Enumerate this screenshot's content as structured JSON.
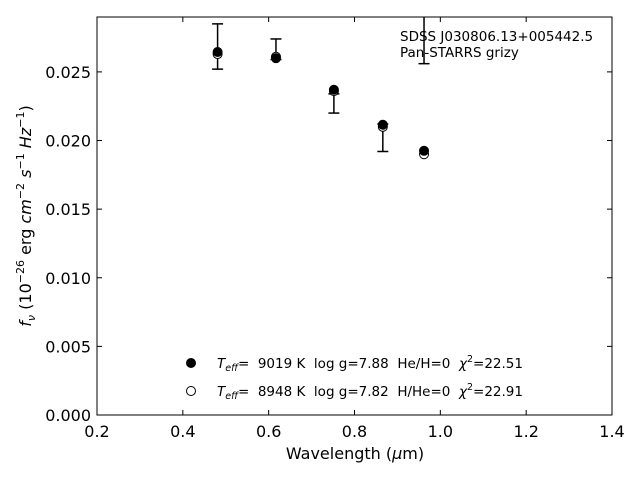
{
  "chart_data": {
    "type": "scatter",
    "title": "",
    "xlabel": "Wavelength (μm)",
    "ylabel": "f_ν (10^-26 erg cm^-2 s^-1 Hz^-1)",
    "xlim": [
      0.2,
      1.4
    ],
    "ylim": [
      0.0,
      0.029
    ],
    "x_ticks": [
      0.2,
      0.4,
      0.6,
      0.8,
      1.0,
      1.2,
      1.4
    ],
    "x_tick_labels": [
      "0.2",
      "0.4",
      "0.6",
      "0.8",
      "1.0",
      "1.2",
      "1.4"
    ],
    "y_ticks": [
      0.0,
      0.005,
      0.01,
      0.015,
      0.02,
      0.025
    ],
    "y_tick_labels": [
      "0.000",
      "0.005",
      "0.010",
      "0.015",
      "0.020",
      "0.025"
    ],
    "grid": false,
    "annotations": [
      "SDSS J030806.13+005442.5",
      "Pan-STARRS grizy"
    ],
    "observed": {
      "x": [
        0.481,
        0.617,
        0.752,
        0.866,
        0.962
      ],
      "y_low": [
        0.0252,
        0.0259,
        0.022,
        0.0192,
        0.0256
      ],
      "y_high": [
        0.0285,
        0.0274,
        0.0234,
        0.0212,
        0.0291
      ]
    },
    "series": [
      {
        "name": "Teff= 9019 K log g=7.88 He/H=0 χ2=22.51",
        "marker": "filled",
        "x": [
          0.481,
          0.617,
          0.752,
          0.866,
          0.962
        ],
        "y": [
          0.02645,
          0.026,
          0.0237,
          0.02115,
          0.01925
        ]
      },
      {
        "name": "Teff= 8948 K log g=7.82 H/He=0 χ2=22.91",
        "marker": "open",
        "x": [
          0.481,
          0.617,
          0.752,
          0.866,
          0.962
        ],
        "y": [
          0.0263,
          0.0261,
          0.0236,
          0.021,
          0.019
        ]
      }
    ],
    "legend": {
      "placement": "bottom-center",
      "entries": [
        {
          "marker": "filled",
          "teff_label": "T",
          "teff_sub": "eff",
          "text": "=  9019 K  log g=7.88  He/H=0  ",
          "chi_sym": "χ",
          "chi_sup": "2",
          "chi_val": "=22.51"
        },
        {
          "marker": "open",
          "teff_label": "T",
          "teff_sub": "eff",
          "text": "=  8948 K  log g=7.82  H/He=0  ",
          "chi_sym": "χ",
          "chi_sup": "2",
          "chi_val": "=22.91"
        }
      ]
    },
    "colors": {
      "marker": "#000000",
      "errorbar": "#000000",
      "axis": "#000000"
    }
  }
}
